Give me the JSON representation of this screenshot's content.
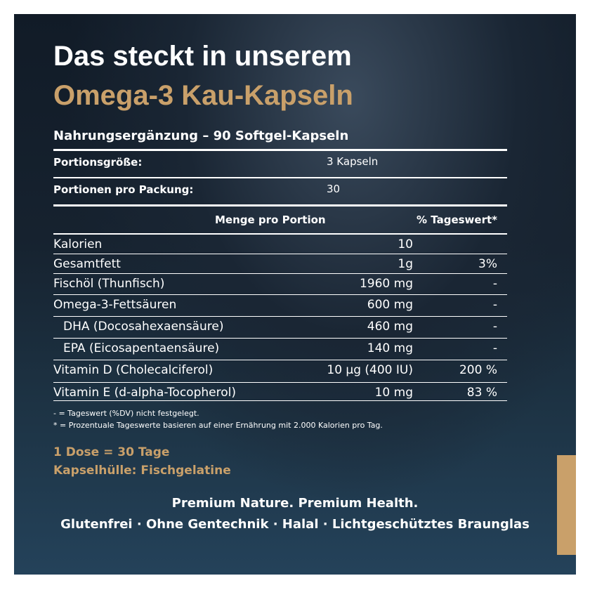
{
  "header": {
    "title_line1": "Das steckt in unserem",
    "title_line2": "Omega-3 Kau-Kapseln"
  },
  "subtitle": "Nahrungsergänzung – 90 Softgel-Kapseln",
  "serving": [
    [
      "Portionsgröße:",
      "3 Kapseln"
    ],
    [
      "Portionen pro Packung:",
      "30"
    ]
  ],
  "table": {
    "columns": [
      "Menge pro Portion",
      "% Tageswert*"
    ],
    "rows": [
      [
        "Kalorien",
        "10"
      ],
      [
        "Gesamtfett",
        "1g",
        "3%"
      ],
      [
        "Fischöl (Thunfisch)",
        "1960 mg",
        "-"
      ],
      [
        "Omega-3-Fettsäuren",
        "600 mg",
        "-"
      ],
      [
        "DHA (Docosahexaensäure)",
        "460 mg",
        "-"
      ],
      [
        "EPA (Eicosapentaensäure)",
        "140 mg",
        "-"
      ],
      [
        "Vitamin D (Cholecalciferol)",
        "10 µg (400 IU)",
        "200 %"
      ],
      [
        "Vitamin E (d-alpha-Tocopherol)",
        "10 mg",
        "83 %"
      ]
    ]
  },
  "footnotes": [
    "- = Tageswert (%DV) nicht festgelegt.",
    "* = Prozentuale Tageswerte basieren auf einer Ernährung mit 2.000 Kalorien pro Tag."
  ],
  "info": [
    "1 Dose = 30 Tage",
    "Kapselhülle: Fischgelatine"
  ],
  "slogan": "Premium Nature. Premium Health.",
  "features": "Glutenfrei · Ohne Gentechnik · Halal · Lichtgeschütztes Braunglas"
}
